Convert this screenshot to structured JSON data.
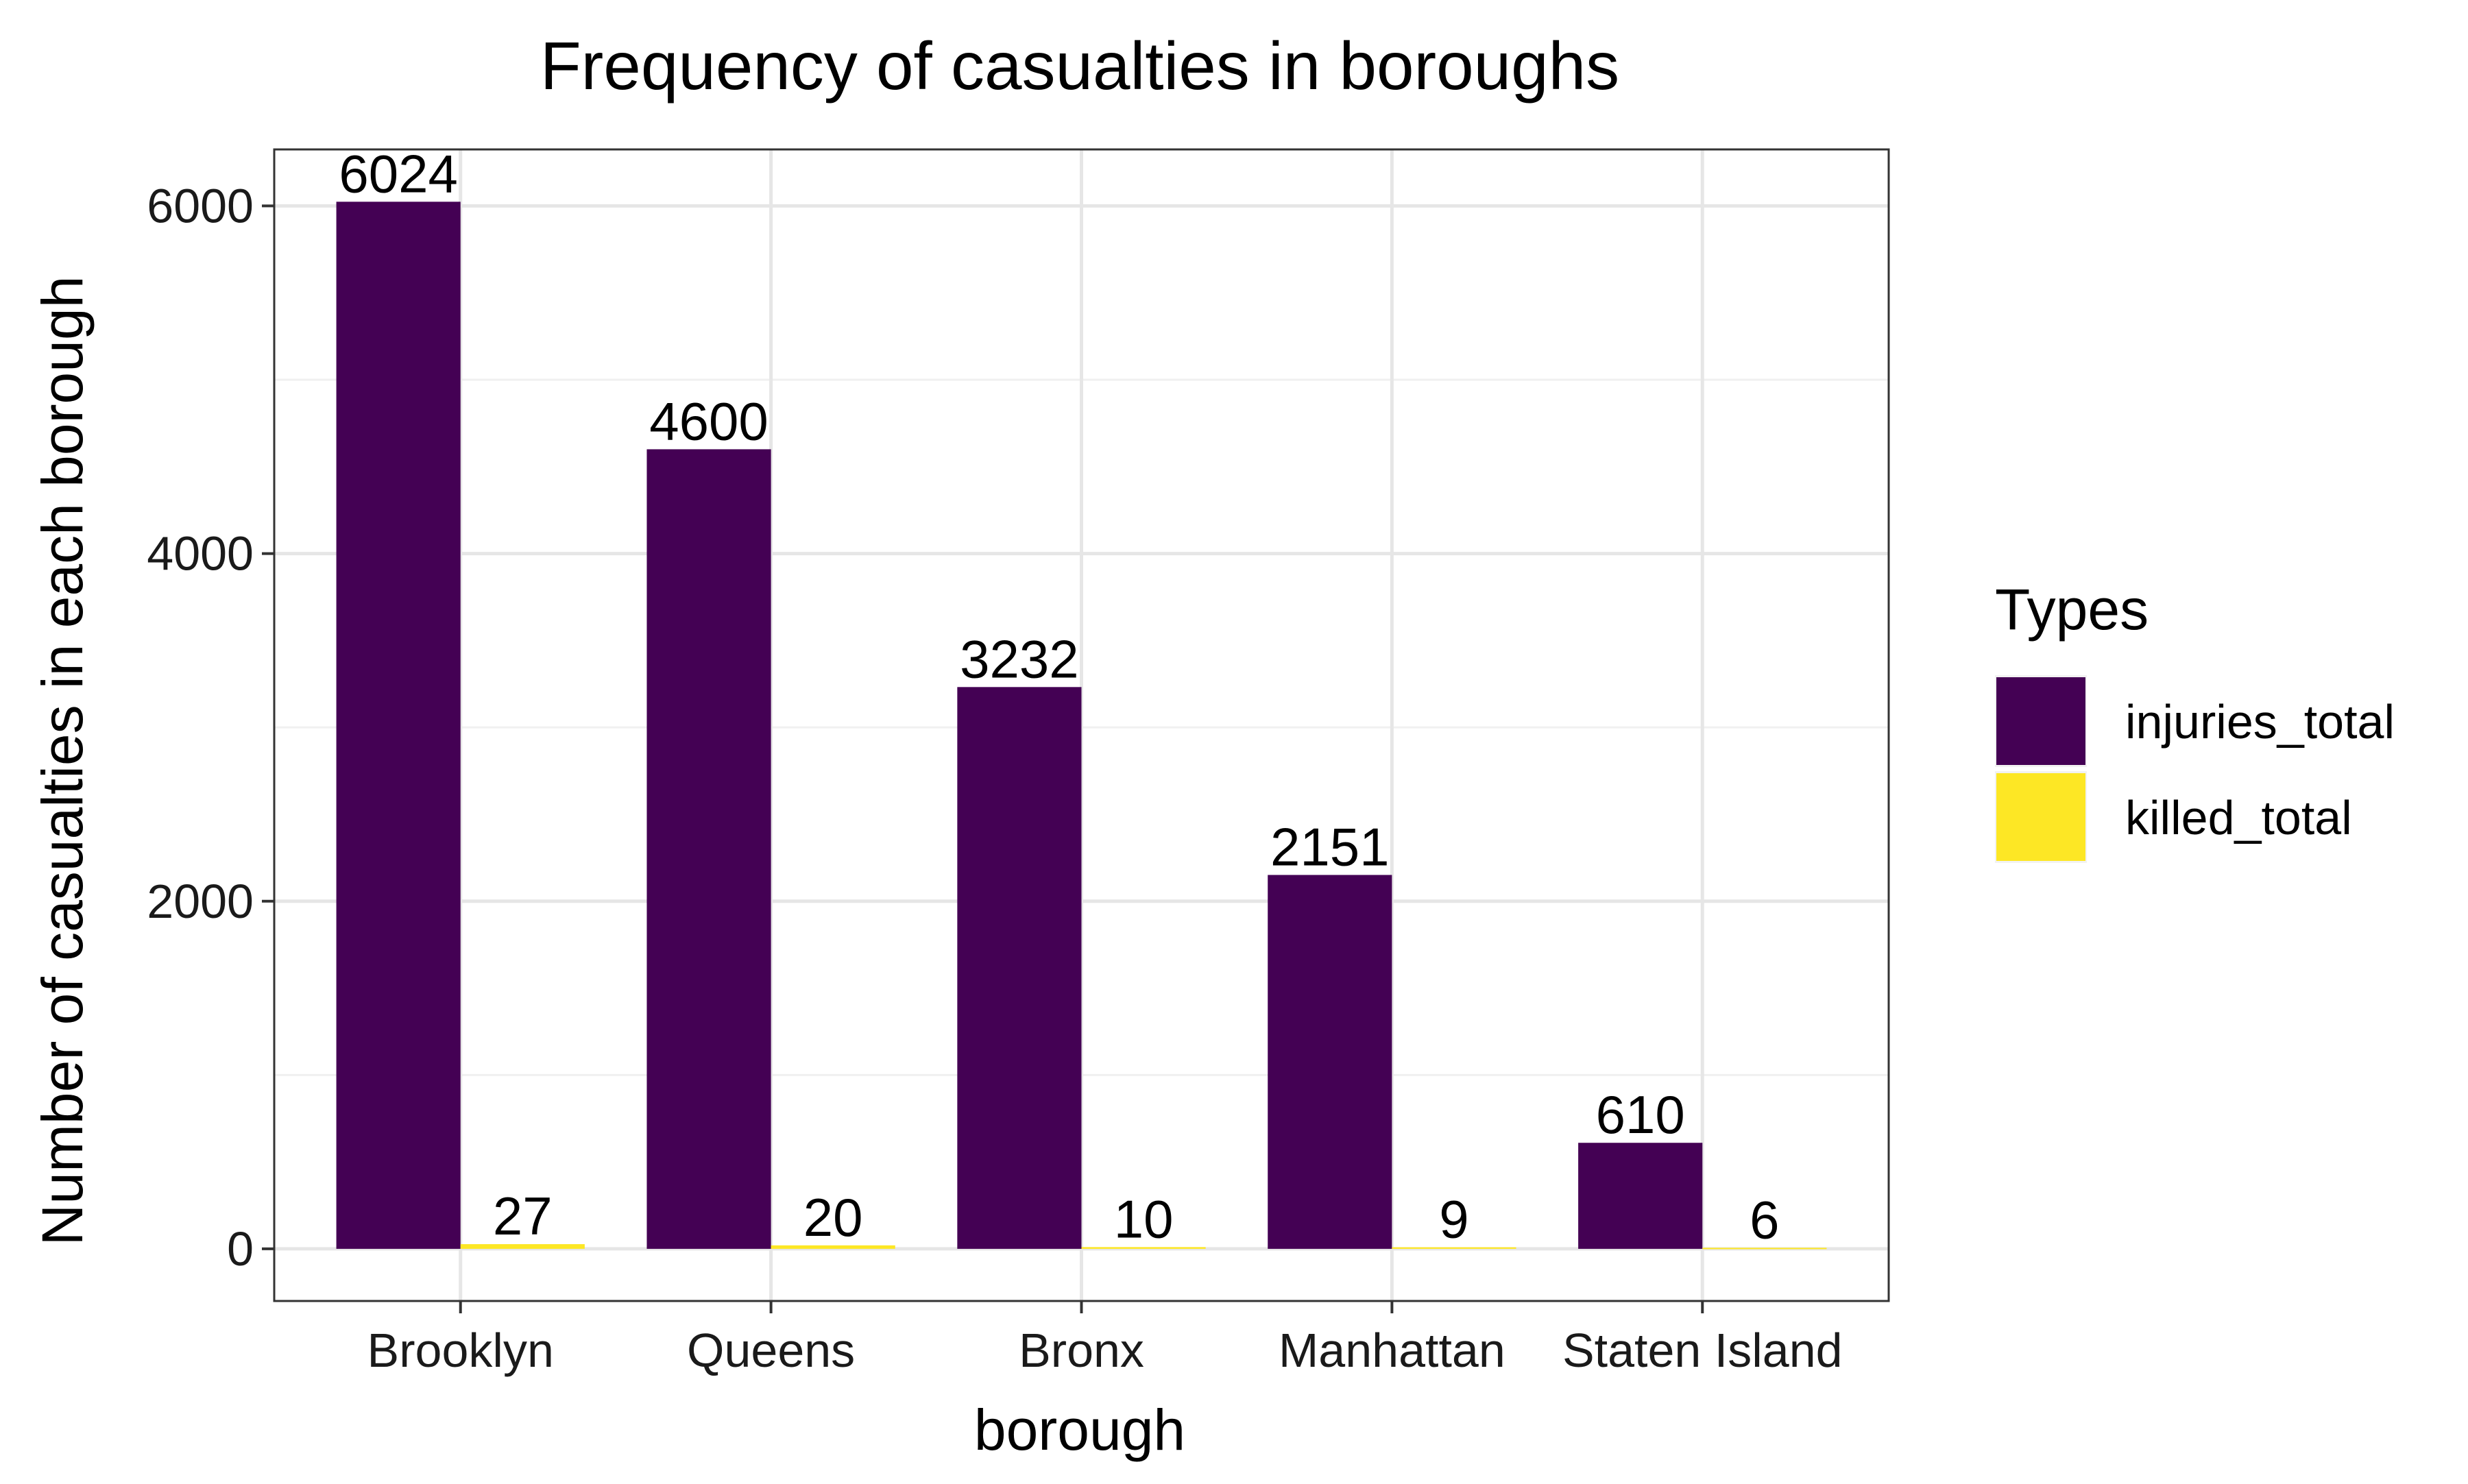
{
  "chart_data": {
    "type": "bar",
    "title": "Frequency of casualties in boroughs",
    "xlabel": "borough",
    "ylabel": "Number of casualties in each borough",
    "categories": [
      "Brooklyn",
      "Queens",
      "Bronx",
      "Manhattan",
      "Staten Island"
    ],
    "series": [
      {
        "name": "injuries_total",
        "color": "#440154",
        "values": [
          6024,
          4600,
          3232,
          2151,
          610
        ]
      },
      {
        "name": "killed_total",
        "color": "#FDE725",
        "values": [
          27,
          20,
          10,
          9,
          6
        ]
      }
    ],
    "yticks": [
      0,
      2000,
      4000,
      6000
    ],
    "ylim": [
      -300,
      6325
    ],
    "grid": true,
    "legend": {
      "title": "Types",
      "position": "right"
    },
    "data_labels": true
  }
}
